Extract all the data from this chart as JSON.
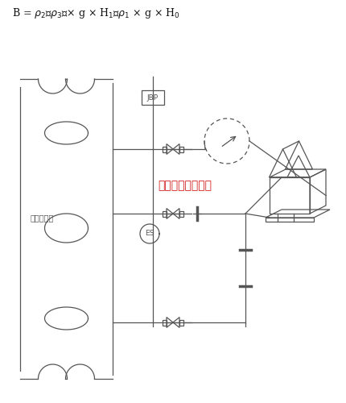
{
  "watermark": "江苏华云流量计厂",
  "watermark_color": "#cc0000",
  "label_pipe": "管线或设备",
  "label_jbp": "JBP",
  "label_es": "ES",
  "bg_color": "#ffffff",
  "line_color": "#555555",
  "fig_width": 4.31,
  "fig_height": 5.0,
  "dpi": 100
}
